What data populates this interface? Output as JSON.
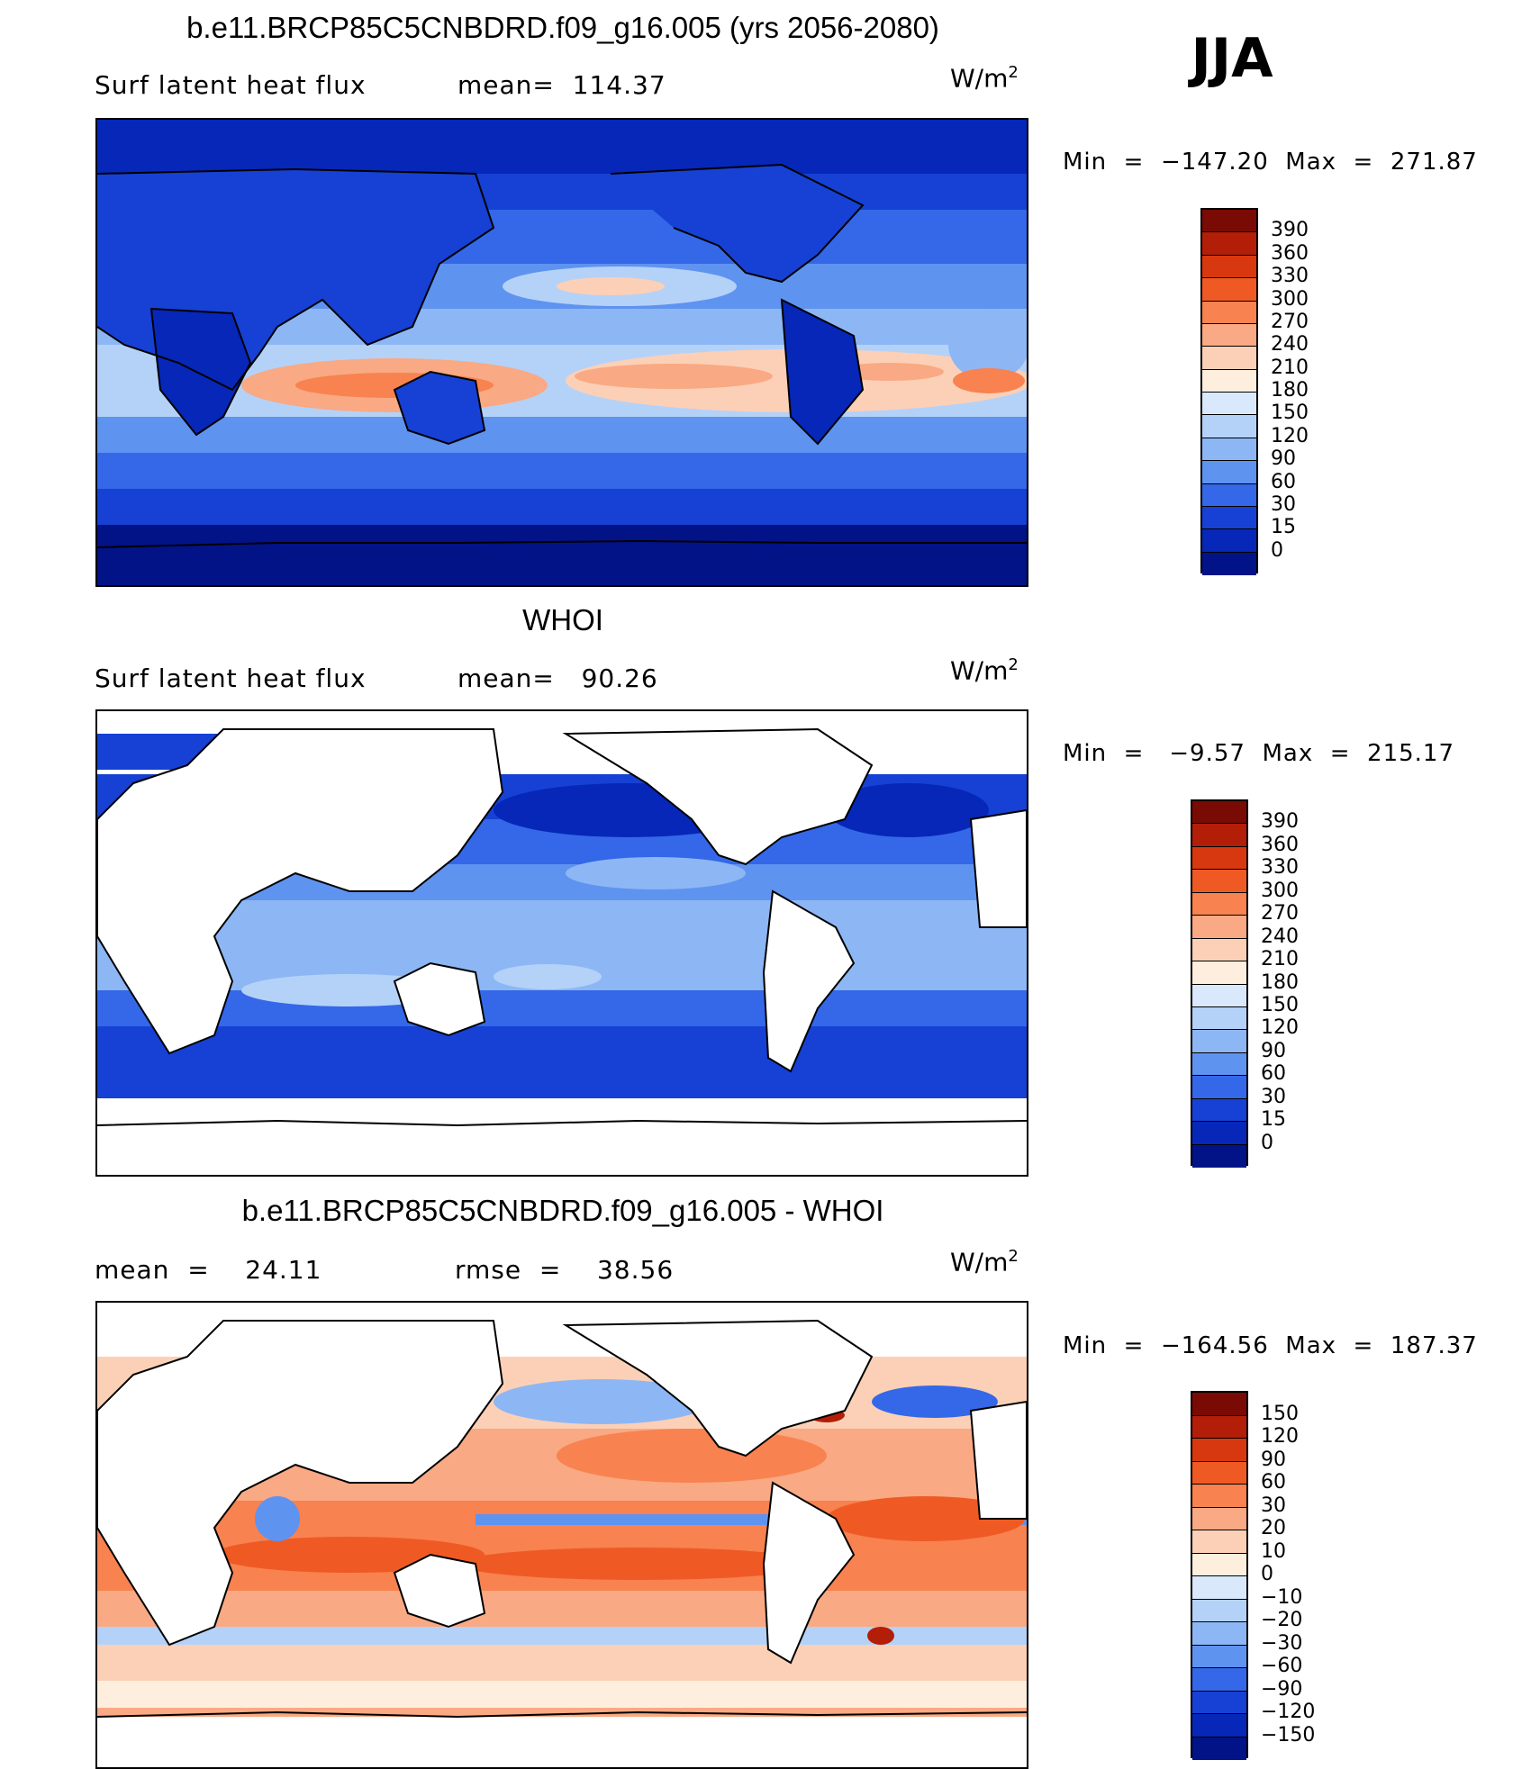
{
  "season": "JJA",
  "panels": [
    {
      "title": "b.e11.BRCP85C5CNBDRD.f09_g16.005 (yrs 2056-2080)",
      "left_label": "Surf latent heat flux",
      "right_label": "mean=  114.37",
      "units": "W/m",
      "units_sup": "2",
      "minmax": "Min  =  −147.20  Max  =  271.87"
    },
    {
      "title": "WHOI",
      "left_label": "Surf latent heat flux",
      "right_label": "mean=   90.26",
      "units": "W/m",
      "units_sup": "2",
      "minmax": "Min  =   −9.57  Max  =  215.17"
    },
    {
      "title": "b.e11.BRCP85C5CNBDRD.f09_g16.005 - WHOI",
      "left_label": "mean  =    24.11",
      "right_label": "rmse  =    38.56",
      "units": "W/m",
      "units_sup": "2",
      "minmax": "Min  =  −164.56  Max  =  187.37"
    }
  ],
  "chart_data": [
    {
      "type": "heatmap",
      "title": "b.e11.BRCP85C5CNBDRD.f09_g16.005 (yrs 2056-2080)",
      "variable": "Surf latent heat flux",
      "units": "W/m2",
      "mean": 114.37,
      "min": -147.2,
      "max": 271.87,
      "colorbar_levels": [
        "390",
        "360",
        "330",
        "300",
        "270",
        "240",
        "210",
        "180",
        "150",
        "120",
        "90",
        "60",
        "30",
        "15",
        "0"
      ],
      "colorbar_colors": [
        "#7a0a04",
        "#b31e08",
        "#d7380f",
        "#ef5a24",
        "#f88250",
        "#f9a983",
        "#fcd0b6",
        "#fdeedd",
        "#d9e9fb",
        "#b4d2f8",
        "#8db7f4",
        "#5f93f0",
        "#3468e8",
        "#1641d4",
        "#0627b8",
        "#021387"
      ]
    },
    {
      "type": "heatmap",
      "title": "WHOI",
      "variable": "Surf latent heat flux",
      "units": "W/m2",
      "mean": 90.26,
      "min": -9.57,
      "max": 215.17,
      "colorbar_levels": [
        "390",
        "360",
        "330",
        "300",
        "270",
        "240",
        "210",
        "180",
        "150",
        "120",
        "90",
        "60",
        "30",
        "15",
        "0"
      ],
      "colorbar_colors": [
        "#7a0a04",
        "#b31e08",
        "#d7380f",
        "#ef5a24",
        "#f88250",
        "#f9a983",
        "#fcd0b6",
        "#fdeedd",
        "#d9e9fb",
        "#b4d2f8",
        "#8db7f4",
        "#5f93f0",
        "#3468e8",
        "#1641d4",
        "#0627b8",
        "#021387"
      ]
    },
    {
      "type": "heatmap",
      "title": "b.e11.BRCP85C5CNBDRD.f09_g16.005 - WHOI",
      "units": "W/m2",
      "mean": 24.11,
      "rmse": 38.56,
      "min": -164.56,
      "max": 187.37,
      "colorbar_levels": [
        "150",
        "120",
        "90",
        "60",
        "30",
        "20",
        "10",
        "0",
        "−10",
        "−20",
        "−30",
        "−60",
        "−90",
        "−120",
        "−150"
      ],
      "colorbar_colors": [
        "#7a0a04",
        "#b31e08",
        "#d7380f",
        "#ef5a24",
        "#f88250",
        "#f9a983",
        "#fcd0b6",
        "#fdeedd",
        "#d9e9fb",
        "#b4d2f8",
        "#8db7f4",
        "#5f93f0",
        "#3468e8",
        "#1641d4",
        "#0627b8",
        "#021387"
      ]
    }
  ]
}
